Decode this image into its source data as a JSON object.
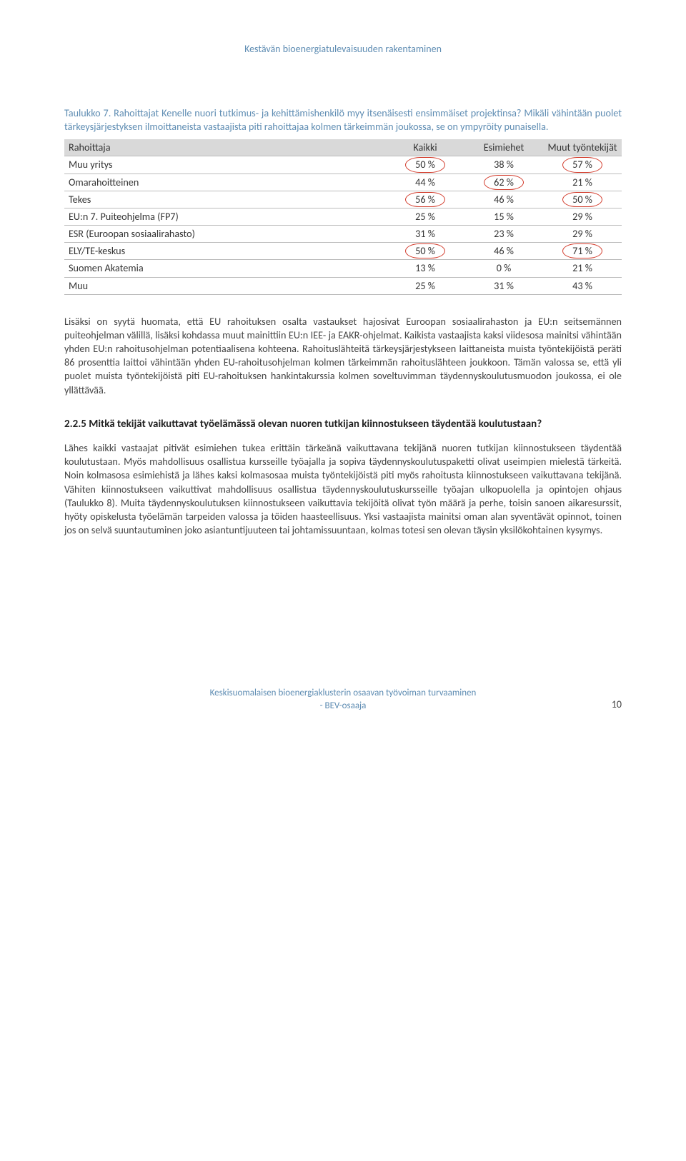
{
  "header": "Kestävän bioenergiatulevaisuuden rakentaminen",
  "table_caption": "Taulukko 7. Rahoittajat Kenelle nuori tutkimus- ja kehittämishenkilö myy itsenäisesti ensimmäiset projektinsa? Mikäli vähintään puolet tärkeysjärjestyksen ilmoittaneista vastaajista piti rahoittajaa kolmen tärkeimmän joukossa, se on ympyröity punaisella.",
  "table": {
    "columns": [
      "Rahoittaja",
      "Kaikki",
      "Esimiehet",
      "Muut työntekijät"
    ],
    "rows": [
      {
        "label": "Muu yritys",
        "c1": "50 %",
        "c2": "38 %",
        "c3": "57 %",
        "circ": [
          true,
          false,
          true
        ]
      },
      {
        "label": "Omarahoitteinen",
        "c1": "44 %",
        "c2": "62 %",
        "c3": "21 %",
        "circ": [
          false,
          true,
          false
        ]
      },
      {
        "label": "Tekes",
        "c1": "56 %",
        "c2": "46 %",
        "c3": "50 %",
        "circ": [
          true,
          false,
          true
        ]
      },
      {
        "label": "EU:n 7. Puiteohjelma (FP7)",
        "c1": "25 %",
        "c2": "15 %",
        "c3": "29 %",
        "circ": [
          false,
          false,
          false
        ]
      },
      {
        "label": "ESR (Euroopan sosiaalirahasto)",
        "c1": "31 %",
        "c2": "23 %",
        "c3": "29 %",
        "circ": [
          false,
          false,
          false
        ]
      },
      {
        "label": "ELY/TE-keskus",
        "c1": "50 %",
        "c2": "46 %",
        "c3": "71 %",
        "circ": [
          true,
          false,
          true
        ]
      },
      {
        "label": "Suomen Akatemia",
        "c1": "13 %",
        "c2": "0 %",
        "c3": "21 %",
        "circ": [
          false,
          false,
          false
        ]
      },
      {
        "label": "Muu",
        "c1": "25 %",
        "c2": "31 %",
        "c3": "43 %",
        "circ": [
          false,
          false,
          false
        ]
      }
    ],
    "header_bg": "#d9d9d9",
    "circle_color": "#d23a2a"
  },
  "para1": "Lisäksi on syytä huomata, että EU rahoituksen osalta vastaukset hajosivat Euroopan sosiaalirahaston ja EU:n seitsemännen puiteohjelman välillä, lisäksi kohdassa muut mainittiin EU:n IEE- ja EAKR-ohjelmat. Kaikista vastaajista kaksi viidesosa mainitsi vähintään yhden EU:n rahoitusohjelman potentiaalisena kohteena. Rahoituslähteitä tärkeysjärjestykseen laittaneista muista työntekijöistä peräti 86 prosenttia laittoi vähintään yhden EU-rahoitusohjelman kolmen tärkeimmän rahoituslähteen joukkoon. Tämän valossa se, että yli puolet muista työntekijöistä piti EU-rahoituksen hankintakurssia kolmen soveltuvimman täydennyskoulutusmuodon joukossa, ei ole yllättävää.",
  "heading": "2.2.5   Mitkä tekijät vaikuttavat työelämässä olevan nuoren tutkijan kiinnostukseen täydentää koulutustaan?",
  "para2": "Lähes kaikki vastaajat pitivät esimiehen tukea erittäin tärkeänä vaikuttavana tekijänä nuoren tutkijan kiinnostukseen täydentää koulutustaan. Myös mahdollisuus osallistua kursseille työajalla ja sopiva täydennyskoulutuspaketti olivat useimpien mielestä tärkeitä. Noin kolmasosa esimiehistä ja lähes kaksi kolmasosaa muista työntekijöistä piti myös rahoitusta kiinnostukseen vaikuttavana tekijänä. Vähiten kiinnostukseen vaikuttivat mahdollisuus osallistua täydennyskoulutuskursseille työajan ulkopuolella ja opintojen ohjaus (Taulukko 8). Muita täydennyskoulutuksen kiinnostukseen vaikuttavia tekijöitä olivat työn määrä ja perhe, toisin sanoen aikaresurssit, hyöty opiskelusta työelämän tarpeiden valossa ja töiden haasteellisuus. Yksi vastaajista mainitsi oman alan syventävät opinnot, toinen jos on selvä suuntautuminen joko asiantuntijuuteen tai johtamissuuntaan, kolmas totesi sen olevan täysin yksilökohtainen kysymys.",
  "footer_line1": "Keskisuomalaisen bioenergiaklusterin osaavan työvoiman turvaaminen",
  "footer_line2": "- BEV-osaaja",
  "page_number": "10"
}
